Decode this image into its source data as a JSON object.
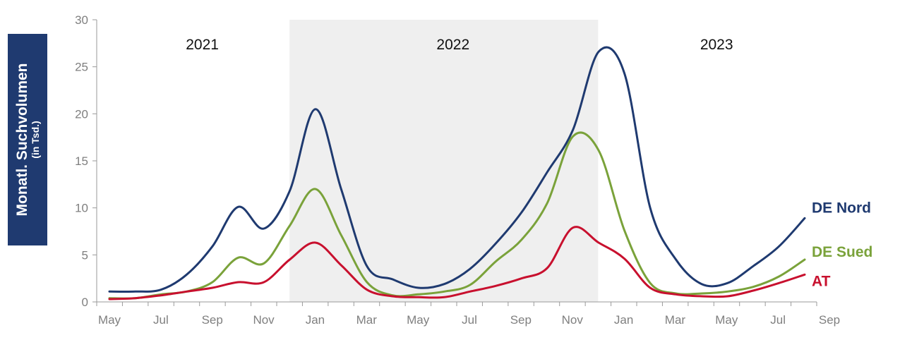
{
  "ylabel": {
    "main": "Monatl. Suchvolumen",
    "sub": "(in Tsd.)"
  },
  "chart_data": {
    "type": "line",
    "x_tick_labels": [
      "May",
      "Jul",
      "Sep",
      "Nov",
      "Jan",
      "Mar",
      "May",
      "Jul",
      "Sep",
      "Nov",
      "Jan",
      "Mar",
      "May",
      "Jul",
      "Sep"
    ],
    "x_months": [
      "2021-05",
      "2021-06",
      "2021-07",
      "2021-08",
      "2021-09",
      "2021-10",
      "2021-11",
      "2021-12",
      "2022-01",
      "2022-02",
      "2022-03",
      "2022-04",
      "2022-05",
      "2022-06",
      "2022-07",
      "2022-08",
      "2022-09",
      "2022-10",
      "2022-11",
      "2022-12",
      "2023-01",
      "2023-02",
      "2023-03",
      "2023-04",
      "2023-05",
      "2023-06",
      "2023-07",
      "2023-08",
      "2023-09"
    ],
    "ylim": [
      0,
      30
    ],
    "y_ticks": [
      0,
      5,
      10,
      15,
      20,
      25,
      30
    ],
    "year_bands": [
      {
        "label": "2021",
        "shaded": false
      },
      {
        "label": "2022",
        "shaded": true
      },
      {
        "label": "2023",
        "shaded": false
      }
    ],
    "series": [
      {
        "name": "DE Nord",
        "color": "#1f3a70",
        "values": [
          1.1,
          1.1,
          1.3,
          2.9,
          5.9,
          10.1,
          7.8,
          11.8,
          20.5,
          12.0,
          3.8,
          2.4,
          1.5,
          1.9,
          3.5,
          6.2,
          9.5,
          13.8,
          18.3,
          26.6,
          24.3,
          10.0,
          4.5,
          1.9,
          2.0,
          3.8,
          5.9,
          8.9,
          null
        ]
      },
      {
        "name": "DE Sued",
        "color": "#7aa23a",
        "values": [
          0.4,
          0.4,
          0.8,
          1.1,
          2.1,
          4.7,
          4.1,
          8.1,
          12.0,
          7.1,
          2.1,
          0.7,
          0.8,
          1.1,
          1.8,
          4.3,
          6.6,
          10.5,
          17.6,
          16.1,
          7.6,
          2.0,
          0.9,
          0.9,
          1.1,
          1.6,
          2.7,
          4.5,
          null
        ]
      },
      {
        "name": "AT",
        "color": "#c8102e",
        "values": [
          0.3,
          0.4,
          0.7,
          1.1,
          1.5,
          2.1,
          2.1,
          4.5,
          6.3,
          3.9,
          1.3,
          0.6,
          0.5,
          0.5,
          1.1,
          1.7,
          2.5,
          3.6,
          7.9,
          6.3,
          4.6,
          1.5,
          0.8,
          0.6,
          0.6,
          1.2,
          2.0,
          2.9,
          null
        ]
      }
    ]
  }
}
